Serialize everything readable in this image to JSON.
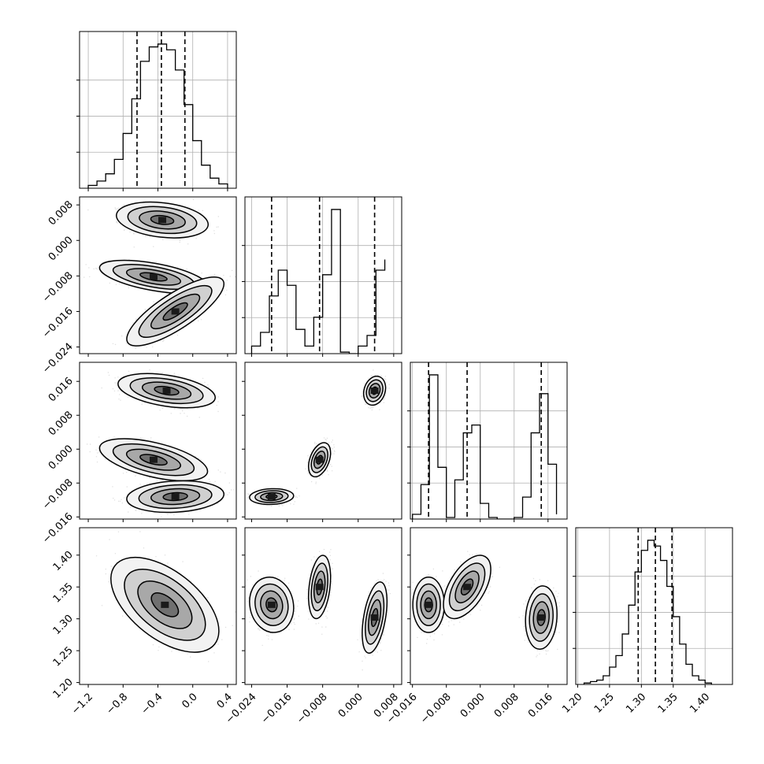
{
  "chart_data": {
    "type": "corner",
    "grid": true,
    "axes": [
      {
        "id": "p0",
        "ticks": [
          -1.2,
          -0.8,
          -0.4,
          0.0,
          0.4
        ],
        "tick_labels": [
          "−1.2",
          "−0.8",
          "−0.4",
          "0.0",
          "0.4"
        ],
        "range": [
          -1.3,
          0.5
        ]
      },
      {
        "id": "p1",
        "ticks": [
          -0.024,
          -0.016,
          -0.008,
          0.0,
          0.008
        ],
        "tick_labels": [
          "−0.024",
          "−0.016",
          "−0.008",
          "0.000",
          "0.008"
        ],
        "range": [
          -0.0255,
          0.0098
        ]
      },
      {
        "id": "p2",
        "ticks": [
          -0.016,
          -0.008,
          0.0,
          0.008,
          0.016
        ],
        "tick_labels": [
          "−0.016",
          "−0.008",
          "0.000",
          "0.008",
          "0.016"
        ],
        "range": [
          -0.0165,
          0.0205
        ]
      },
      {
        "id": "p3",
        "ticks": [
          1.2,
          1.25,
          1.3,
          1.35,
          1.4
        ],
        "tick_labels": [
          "1.20",
          "1.25",
          "1.30",
          "1.35",
          "1.40"
        ],
        "range": [
          1.197,
          1.443
        ]
      }
    ],
    "histograms": [
      {
        "param": 0,
        "bin_edges": [
          -1.2,
          -1.1,
          -1.0,
          -0.9,
          -0.8,
          -0.7,
          -0.6,
          -0.5,
          -0.4,
          -0.3,
          -0.2,
          -0.1,
          0.0,
          0.1,
          0.2,
          0.3,
          0.4
        ],
        "counts": [
          0.02,
          0.05,
          0.1,
          0.2,
          0.38,
          0.62,
          0.88,
          0.98,
          1.0,
          0.96,
          0.82,
          0.58,
          0.33,
          0.16,
          0.07,
          0.03
        ],
        "quantiles": [
          -0.64,
          -0.36,
          -0.09
        ]
      },
      {
        "param": 1,
        "bin_edges": [
          -0.024,
          -0.022,
          -0.02,
          -0.018,
          -0.016,
          -0.014,
          -0.012,
          -0.01,
          -0.008,
          -0.006,
          -0.004,
          -0.002,
          0.0,
          0.002,
          0.004,
          0.006
        ],
        "counts": [
          0.05,
          0.14,
          0.38,
          0.55,
          0.45,
          0.16,
          0.05,
          0.24,
          0.52,
          0.95,
          0.01,
          0.0,
          0.05,
          0.12,
          0.55,
          0.62
        ],
        "quantiles": [
          -0.0195,
          -0.0087,
          0.0037
        ]
      },
      {
        "param": 2,
        "bin_edges": [
          -0.016,
          -0.014,
          -0.012,
          -0.01,
          -0.008,
          -0.006,
          -0.004,
          -0.002,
          0.0,
          0.002,
          0.004,
          0.006,
          0.008,
          0.01,
          0.012,
          0.014,
          0.016,
          0.018
        ],
        "counts": [
          0.03,
          0.22,
          0.92,
          0.33,
          0.01,
          0.25,
          0.55,
          0.6,
          0.1,
          0.01,
          0.0,
          0.0,
          0.01,
          0.14,
          0.55,
          0.8,
          0.35,
          0.03
        ],
        "quantiles": [
          -0.0122,
          -0.0031,
          0.0144
        ]
      },
      {
        "param": 3,
        "bin_edges": [
          1.21,
          1.22,
          1.23,
          1.24,
          1.25,
          1.26,
          1.27,
          1.28,
          1.29,
          1.3,
          1.31,
          1.32,
          1.33,
          1.34,
          1.35,
          1.36,
          1.37,
          1.38,
          1.39,
          1.4,
          1.41
        ],
        "counts": [
          0.01,
          0.02,
          0.03,
          0.06,
          0.12,
          0.2,
          0.35,
          0.55,
          0.78,
          0.93,
          1.0,
          0.96,
          0.86,
          0.68,
          0.47,
          0.28,
          0.14,
          0.06,
          0.03,
          0.01
        ],
        "quantiles": [
          1.295,
          1.322,
          1.348
        ]
      }
    ],
    "scatter_panels": [
      {
        "x": 0,
        "y": 1,
        "modes": [
          {
            "cx": -0.35,
            "cy": 0.0046,
            "sx": 0.17,
            "sy": 0.0013,
            "rho": -0.25,
            "w": 1.0
          },
          {
            "cx": -0.45,
            "cy": -0.0082,
            "sx": 0.2,
            "sy": 0.0012,
            "rho": -0.55,
            "w": 1.0
          },
          {
            "cx": -0.2,
            "cy": -0.016,
            "sx": 0.18,
            "sy": 0.0025,
            "rho": 0.8,
            "w": 1.0
          }
        ]
      },
      {
        "x": 0,
        "y": 2,
        "modes": [
          {
            "cx": -0.3,
            "cy": 0.0138,
            "sx": 0.18,
            "sy": 0.0013,
            "rho": -0.4,
            "w": 1.0
          },
          {
            "cx": -0.45,
            "cy": -0.0025,
            "sx": 0.2,
            "sy": 0.0016,
            "rho": -0.55,
            "w": 1.0
          },
          {
            "cx": -0.2,
            "cy": -0.0112,
            "sx": 0.18,
            "sy": 0.0012,
            "rho": 0.15,
            "w": 1.0
          }
        ]
      },
      {
        "x": 1,
        "y": 2,
        "modes": [
          {
            "cx": 0.0037,
            "cy": 0.0138,
            "sx": 0.0008,
            "sy": 0.0011,
            "rho": 0.2,
            "w": 1.0
          },
          {
            "cx": -0.0087,
            "cy": -0.0025,
            "sx": 0.0008,
            "sy": 0.0013,
            "rho": 0.4,
            "w": 1.0
          },
          {
            "cx": -0.0195,
            "cy": -0.0112,
            "sx": 0.0016,
            "sy": 0.0006,
            "rho": 0.1,
            "w": 1.0
          }
        ]
      },
      {
        "x": 0,
        "y": 3,
        "modes": [
          {
            "cx": -0.32,
            "cy": 1.322,
            "sx": 0.2,
            "sy": 0.024,
            "rho": -0.55,
            "w": 1.0
          }
        ]
      },
      {
        "x": 1,
        "y": 3,
        "modes": [
          {
            "cx": -0.0195,
            "cy": 1.322,
            "sx": 0.0016,
            "sy": 0.014,
            "rho": -0.1,
            "w": 1.0
          },
          {
            "cx": -0.0087,
            "cy": 1.35,
            "sx": 0.0008,
            "sy": 0.016,
            "rho": 0.3,
            "w": 1.0
          },
          {
            "cx": 0.0037,
            "cy": 1.302,
            "sx": 0.0009,
            "sy": 0.018,
            "rho": 0.45,
            "w": 1.0
          }
        ]
      },
      {
        "x": 2,
        "y": 3,
        "modes": [
          {
            "cx": -0.0122,
            "cy": 1.322,
            "sx": 0.0012,
            "sy": 0.014,
            "rho": 0.0,
            "w": 1.0
          },
          {
            "cx": -0.0031,
            "cy": 1.35,
            "sx": 0.0018,
            "sy": 0.016,
            "rho": 0.55,
            "w": 1.0
          },
          {
            "cx": 0.0144,
            "cy": 1.302,
            "sx": 0.0012,
            "sy": 0.016,
            "rho": 0.1,
            "w": 1.0
          }
        ]
      }
    ],
    "contour_levels_sigma": [
      0.5,
      1.0,
      1.5,
      2.0
    ],
    "colors": {
      "line": "#000000",
      "density": "#000000",
      "grid": "#b0b0b0"
    }
  }
}
